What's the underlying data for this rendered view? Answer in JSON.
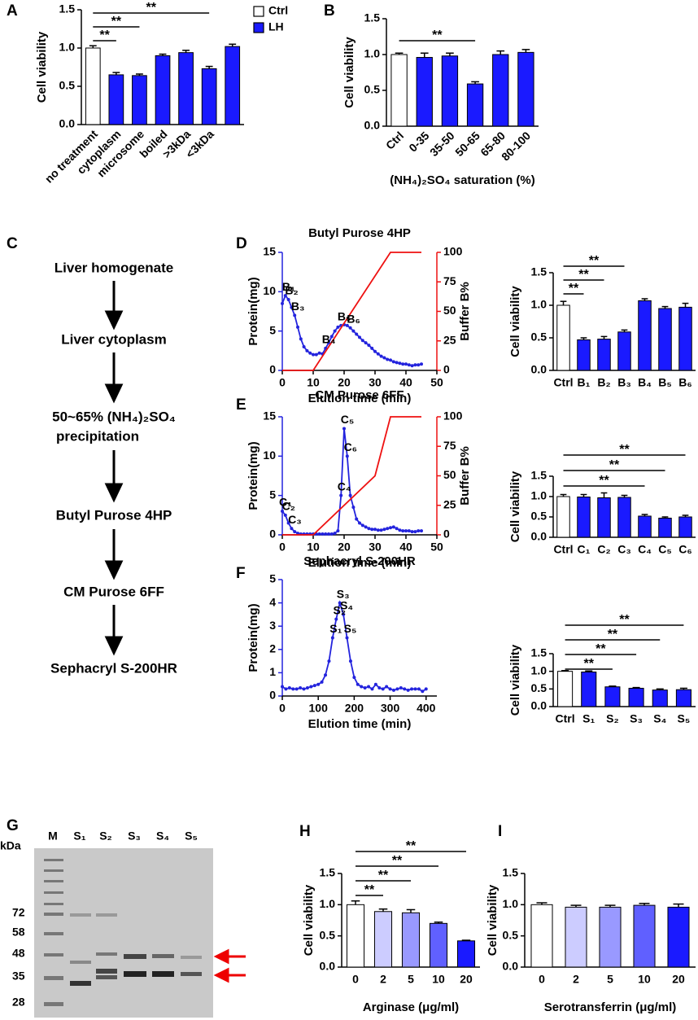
{
  "chart_data": [
    {
      "panel": "A",
      "type": "bar",
      "ylabel": "Cell viability",
      "categories": [
        "no treatment",
        "cytoplasm",
        "microsome",
        "boiled",
        ">3kDa",
        "<3kDa",
        null
      ],
      "values": [
        1.0,
        0.65,
        0.64,
        0.9,
        0.94,
        0.73,
        1.02
      ],
      "errors": [
        0.03,
        0.03,
        0.02,
        0.02,
        0.03,
        0.03,
        0.03
      ],
      "colors": [
        "#ffffff",
        "#1a1aff",
        "#1a1aff",
        "#1a1aff",
        "#1a1aff",
        "#1a1aff",
        "#1a1aff"
      ],
      "legend": [
        {
          "name": "Ctrl",
          "color": "#ffffff"
        },
        {
          "name": "LH",
          "color": "#1a1aff"
        }
      ],
      "ylim": [
        0,
        1.5
      ],
      "yticks": [
        {
          "value": 0,
          "label": "0.0"
        },
        0.5,
        {
          "value": 1,
          "label": "1.0"
        },
        1.5
      ],
      "significance": [
        {
          "label": "**",
          "from": 0,
          "to": 1
        },
        {
          "label": "**",
          "from": 0,
          "to": 2
        },
        {
          "label": "**",
          "from": 0,
          "to": 5
        }
      ]
    },
    {
      "panel": "B",
      "type": "bar",
      "ylabel": "Cell viability",
      "xlabel": "(NH₄)₂SO₄ saturation (%)",
      "categories": [
        "Ctrl",
        "0-35",
        "35-50",
        "50-65",
        "65-80",
        "80-100"
      ],
      "values": [
        1.0,
        0.96,
        0.98,
        0.59,
        1.0,
        1.03
      ],
      "errors": [
        0.02,
        0.06,
        0.04,
        0.03,
        0.05,
        0.04
      ],
      "colors": [
        "#ffffff",
        "#1a1aff",
        "#1a1aff",
        "#1a1aff",
        "#1a1aff",
        "#1a1aff"
      ],
      "ylim": [
        0,
        1.5
      ],
      "yticks": [
        {
          "value": 0,
          "label": "0.0"
        },
        0.5,
        {
          "value": 1,
          "label": "1.0"
        },
        1.5
      ],
      "significance": [
        {
          "label": "**",
          "from": 0,
          "to": 3
        }
      ]
    },
    {
      "panel": "D",
      "type": "line",
      "title": "Butyl Purose 4HP",
      "xlabel": "Elution time (min)",
      "ylabel": "Protein(mg)",
      "y2label": "Buffer B%",
      "xlim": [
        0,
        50
      ],
      "xticks": [
        0,
        10,
        20,
        30,
        40,
        50
      ],
      "ylim": [
        0,
        15
      ],
      "yticks": [
        0,
        5,
        10,
        15
      ],
      "y2lim": [
        0,
        100
      ],
      "y2ticks": [
        0,
        25,
        50,
        75,
        100
      ],
      "series": [
        {
          "color": "#2323dd",
          "markers": true,
          "x": [
            0,
            1,
            2,
            3,
            4,
            5,
            6,
            7,
            8,
            9,
            10,
            11,
            12,
            13,
            14,
            15,
            16,
            17,
            18,
            19,
            20,
            21,
            22,
            23,
            24,
            25,
            26,
            27,
            28,
            29,
            30,
            31,
            32,
            33,
            34,
            35,
            36,
            37,
            38,
            39,
            40,
            41,
            42,
            43,
            44,
            45
          ],
          "values": [
            8.5,
            9.5,
            9,
            8,
            7,
            5.5,
            4,
            3,
            2.5,
            2.2,
            2,
            2,
            2.2,
            2.1,
            2.8,
            3.5,
            4.3,
            5,
            5.5,
            5.7,
            5.8,
            5.7,
            5.4,
            5,
            4.6,
            4.2,
            3.8,
            3.5,
            3.2,
            2.8,
            2.4,
            2.1,
            1.8,
            1.6,
            1.4,
            1.3,
            1.1,
            1,
            0.9,
            0.8,
            0.8,
            0.7,
            0.6,
            0.7,
            0.7,
            0.8
          ]
        },
        {
          "color": "#ee1111",
          "axis": "y2",
          "x": [
            0,
            10,
            35,
            45
          ],
          "values": [
            0,
            0,
            100,
            100
          ]
        }
      ],
      "point_labels": [
        {
          "label": "B₁",
          "x": 1
        },
        {
          "label": "B₂",
          "x": 2
        },
        {
          "label": "B₃",
          "x": 4
        },
        {
          "label": "B₄",
          "x": 14
        },
        {
          "label": "B₅",
          "x": 19
        },
        {
          "label": "B₆",
          "x": 22
        }
      ]
    },
    {
      "type": "bar",
      "ylabel": "Cell viability",
      "categories": [
        "Ctrl",
        "B₁",
        "B₂",
        "B₃",
        "B₄",
        "B₅",
        "B₆"
      ],
      "values": [
        1.0,
        0.47,
        0.48,
        0.59,
        1.07,
        0.95,
        0.97
      ],
      "errors": [
        0.06,
        0.03,
        0.04,
        0.03,
        0.03,
        0.03,
        0.06
      ],
      "colors": [
        "#ffffff",
        "#1a1aff",
        "#1a1aff",
        "#1a1aff",
        "#1a1aff",
        "#1a1aff",
        "#1a1aff"
      ],
      "ylim": [
        0,
        1.5
      ],
      "yticks": [
        {
          "value": 0,
          "label": "0.0"
        },
        0.5,
        {
          "value": 1,
          "label": "1.0"
        },
        1.5
      ],
      "significance": [
        {
          "label": "**",
          "from": 0,
          "to": 1
        },
        {
          "label": "**",
          "from": 0,
          "to": 2
        },
        {
          "label": "**",
          "from": 0,
          "to": 3
        }
      ]
    },
    {
      "panel": "E",
      "type": "line",
      "title": "CM Purose 6FF",
      "xlabel": "Elution time (min)",
      "ylabel": "Protein(mg)",
      "y2label": "Buffer B%",
      "xlim": [
        0,
        50
      ],
      "xticks": [
        0,
        10,
        20,
        30,
        40,
        50
      ],
      "ylim": [
        0,
        15
      ],
      "yticks": [
        0,
        5,
        10,
        15
      ],
      "y2lim": [
        0,
        100
      ],
      "y2ticks": [
        0,
        25,
        50,
        75,
        100
      ],
      "series": [
        {
          "color": "#2323dd",
          "markers": true,
          "x": [
            0,
            1,
            2,
            3,
            4,
            5,
            6,
            7,
            8,
            9,
            10,
            11,
            12,
            13,
            14,
            15,
            16,
            17,
            18,
            19,
            20,
            21,
            22,
            23,
            24,
            25,
            26,
            27,
            28,
            29,
            30,
            31,
            32,
            33,
            34,
            35,
            36,
            37,
            38,
            39,
            40,
            41,
            42,
            43,
            44,
            45
          ],
          "values": [
            3,
            2.5,
            1.5,
            0.8,
            0.4,
            0.2,
            0.1,
            0.1,
            0.1,
            0.1,
            0.1,
            0.1,
            0.1,
            0.1,
            0.1,
            0.1,
            0.1,
            0.2,
            0.5,
            5,
            13.5,
            10,
            5,
            3.5,
            2,
            1.5,
            1.2,
            1,
            0.8,
            0.7,
            0.7,
            0.6,
            0.6,
            0.7,
            0.8,
            0.9,
            1,
            0.8,
            0.6,
            0.5,
            0.5,
            0.5,
            0.4,
            0.4,
            0.5,
            0.5
          ]
        },
        {
          "color": "#ee1111",
          "axis": "y2",
          "x": [
            0,
            10,
            30,
            35,
            45
          ],
          "values": [
            0,
            0,
            50,
            100,
            100
          ]
        }
      ],
      "point_labels": [
        {
          "label": "C₁",
          "x": 0
        },
        {
          "label": "C₂",
          "x": 1
        },
        {
          "label": "C₃",
          "x": 3
        },
        {
          "label": "C₄",
          "x": 19
        },
        {
          "label": "C₅",
          "x": 20
        },
        {
          "label": "C₆",
          "x": 21
        }
      ]
    },
    {
      "type": "bar",
      "ylabel": "Cell viability",
      "categories": [
        "Ctrl",
        "C₁",
        "C₂",
        "C₃",
        "C₄",
        "C₅",
        "C₆"
      ],
      "values": [
        1.0,
        0.99,
        0.97,
        0.98,
        0.52,
        0.47,
        0.5
      ],
      "errors": [
        0.05,
        0.06,
        0.12,
        0.05,
        0.04,
        0.03,
        0.04
      ],
      "colors": [
        "#ffffff",
        "#1a1aff",
        "#1a1aff",
        "#1a1aff",
        "#1a1aff",
        "#1a1aff",
        "#1a1aff"
      ],
      "ylim": [
        0,
        1.5
      ],
      "yticks": [
        {
          "value": 0,
          "label": "0.0"
        },
        0.5,
        {
          "value": 1,
          "label": "1.0"
        },
        1.5
      ],
      "significance": [
        {
          "label": "**",
          "from": 0,
          "to": 4
        },
        {
          "label": "**",
          "from": 0,
          "to": 5
        },
        {
          "label": "**",
          "from": 0,
          "to": 6
        }
      ]
    },
    {
      "panel": "F",
      "type": "line",
      "title": "Sephacryl S-200HR",
      "xlabel": "Elution time (min)",
      "ylabel": "Protein(mg)",
      "xlim": [
        0,
        430
      ],
      "xticks": [
        0,
        100,
        200,
        300,
        400
      ],
      "ylim": [
        0,
        5
      ],
      "yticks": [
        0,
        1,
        2,
        3,
        4,
        5
      ],
      "series": [
        {
          "color": "#2323dd",
          "markers": true,
          "x": [
            0,
            10,
            20,
            30,
            40,
            50,
            60,
            70,
            80,
            90,
            100,
            110,
            120,
            130,
            140,
            150,
            160,
            170,
            180,
            190,
            200,
            210,
            220,
            230,
            240,
            250,
            260,
            270,
            280,
            290,
            300,
            310,
            320,
            330,
            340,
            350,
            360,
            370,
            380,
            390,
            400
          ],
          "values": [
            0.4,
            0.3,
            0.35,
            0.3,
            0.3,
            0.35,
            0.3,
            0.35,
            0.4,
            0.45,
            0.5,
            0.6,
            0.9,
            1.5,
            2.5,
            3.3,
            4,
            3.5,
            2.5,
            1.5,
            0.8,
            0.5,
            0.4,
            0.35,
            0.4,
            0.3,
            0.5,
            0.35,
            0.3,
            0.4,
            0.3,
            0.25,
            0.3,
            0.35,
            0.3,
            0.25,
            0.3,
            0.3,
            0.3,
            0.2,
            0.3
          ]
        }
      ],
      "point_labels": [
        {
          "label": "S₁",
          "x": 140
        },
        {
          "label": "S₂",
          "x": 150
        },
        {
          "label": "S₃",
          "x": 160
        },
        {
          "label": "S₄",
          "x": 170
        },
        {
          "label": "S₅",
          "x": 180
        }
      ]
    },
    {
      "type": "bar",
      "ylabel": "Cell viability",
      "categories": [
        "Ctrl",
        "S₁",
        "S₂",
        "S₃",
        "S₄",
        "S₅"
      ],
      "values": [
        1.0,
        0.98,
        0.56,
        0.52,
        0.47,
        0.48
      ],
      "errors": [
        0.02,
        0.03,
        0.02,
        0.02,
        0.03,
        0.04
      ],
      "colors": [
        "#ffffff",
        "#1a1aff",
        "#1a1aff",
        "#1a1aff",
        "#1a1aff",
        "#1a1aff"
      ],
      "ylim": [
        0,
        1.5
      ],
      "yticks": [
        {
          "value": 0,
          "label": "0.0"
        },
        0.5,
        {
          "value": 1,
          "label": "1.0"
        },
        1.5
      ],
      "significance": [
        {
          "label": "**",
          "from": 0,
          "to": 2
        },
        {
          "label": "**",
          "from": 0,
          "to": 3
        },
        {
          "label": "**",
          "from": 0,
          "to": 4
        },
        {
          "label": "**",
          "from": 0,
          "to": 5
        }
      ]
    },
    {
      "panel": "H",
      "type": "bar",
      "ylabel": "Cell viability",
      "xlabel": "Arginase (μg/ml)",
      "categories": [
        "0",
        "2",
        "5",
        "10",
        "20"
      ],
      "values": [
        1.0,
        0.89,
        0.87,
        0.7,
        0.42
      ],
      "errors": [
        0.06,
        0.04,
        0.05,
        0.02,
        0.01
      ],
      "colors": [
        "#ffffff",
        "#ccccff",
        "#9999ff",
        "#6060ff",
        "#1a1aff"
      ],
      "ylim": [
        0,
        1.5
      ],
      "yticks": [
        {
          "value": 0,
          "label": "0.0"
        },
        0.5,
        {
          "value": 1,
          "label": "1.0"
        },
        1.5
      ],
      "significance": [
        {
          "label": "**",
          "from": 0,
          "to": 1
        },
        {
          "label": "**",
          "from": 0,
          "to": 2
        },
        {
          "label": "**",
          "from": 0,
          "to": 3
        },
        {
          "label": "**",
          "from": 0,
          "to": 4
        }
      ]
    },
    {
      "panel": "I",
      "type": "bar",
      "ylabel": "Cell viability",
      "xlabel": "Serotransferrin (μg/ml)",
      "categories": [
        "0",
        "2",
        "5",
        "10",
        "20"
      ],
      "values": [
        1.0,
        0.96,
        0.96,
        0.99,
        0.96
      ],
      "errors": [
        0.03,
        0.03,
        0.03,
        0.03,
        0.05
      ],
      "colors": [
        "#ffffff",
        "#ccccff",
        "#9999ff",
        "#6060ff",
        "#1a1aff"
      ],
      "ylim": [
        0,
        1.5
      ],
      "yticks": [
        {
          "value": 0,
          "label": "0.0"
        },
        0.5,
        {
          "value": 1,
          "label": "1.0"
        },
        1.5
      ],
      "significance": []
    }
  ],
  "flowchart": {
    "panel": "C",
    "steps": [
      [
        "Liver homogenate"
      ],
      [
        "Liver cytoplasm"
      ],
      [
        "50~65% (NH₄)₂SO₄",
        "precipitation"
      ],
      [
        "Butyl Purose 4HP"
      ],
      [
        "CM Purose 6FF"
      ],
      [
        "Sephacryl S-200HR"
      ]
    ]
  },
  "gel": {
    "panel": "G",
    "unit": "kDa",
    "lanes": [
      "M",
      "S₁",
      "S₂",
      "S₃",
      "S₄",
      "S₅"
    ],
    "markers": [
      "72",
      "58",
      "48",
      "35",
      "28"
    ]
  }
}
